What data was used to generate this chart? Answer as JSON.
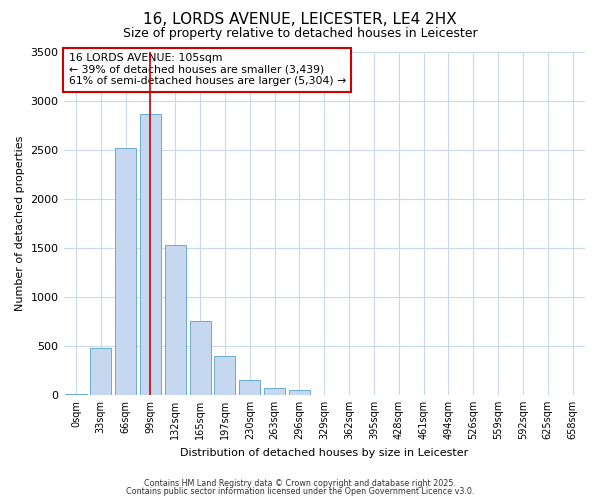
{
  "title_line1": "16, LORDS AVENUE, LEICESTER, LE4 2HX",
  "title_line2": "Size of property relative to detached houses in Leicester",
  "bar_labels": [
    "0sqm",
    "33sqm",
    "66sqm",
    "99sqm",
    "132sqm",
    "165sqm",
    "197sqm",
    "230sqm",
    "263sqm",
    "296sqm",
    "329sqm",
    "362sqm",
    "395sqm",
    "428sqm",
    "461sqm",
    "494sqm",
    "526sqm",
    "559sqm",
    "592sqm",
    "625sqm",
    "658sqm"
  ],
  "bar_values": [
    10,
    480,
    2520,
    2860,
    1530,
    750,
    400,
    150,
    75,
    50,
    0,
    0,
    0,
    0,
    0,
    0,
    0,
    0,
    0,
    0,
    0
  ],
  "bar_color": "#c5d8f0",
  "bar_edgecolor": "#6aaad4",
  "vline_index": 3,
  "vline_color": "#cc0000",
  "ylabel": "Number of detached properties",
  "xlabel": "Distribution of detached houses by size in Leicester",
  "ylim": [
    0,
    3500
  ],
  "yticks": [
    0,
    500,
    1000,
    1500,
    2000,
    2500,
    3000,
    3500
  ],
  "annotation_title": "16 LORDS AVENUE: 105sqm",
  "annotation_line2": "← 39% of detached houses are smaller (3,439)",
  "annotation_line3": "61% of semi-detached houses are larger (5,304) →",
  "annotation_box_color": "#cc0000",
  "fig_bg_color": "#ffffff",
  "axes_bg_color": "#ffffff",
  "grid_color": "#c8d8f0",
  "footer_line1": "Contains HM Land Registry data © Crown copyright and database right 2025.",
  "footer_line2": "Contains public sector information licensed under the Open Government Licence v3.0."
}
